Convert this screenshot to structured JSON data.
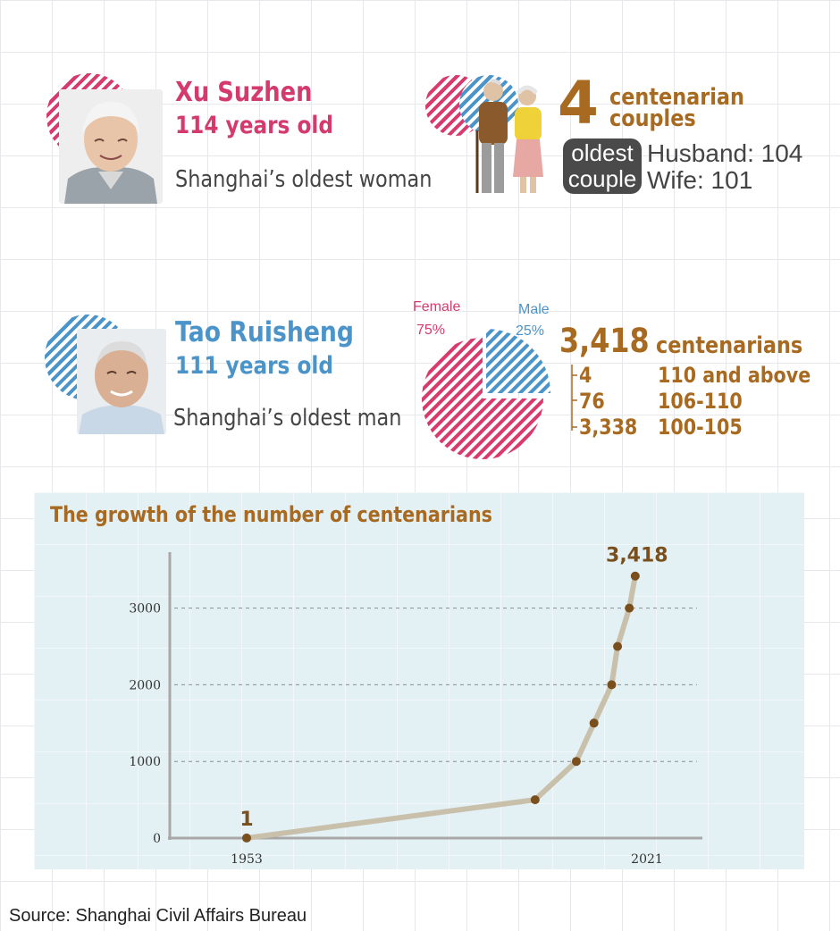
{
  "woman": {
    "name": "Xu Suzhen",
    "age": "114 years old",
    "caption": "Shanghai’s oldest woman"
  },
  "couples": {
    "count": "4",
    "label_line1": "centenarian",
    "label_line2": "couples",
    "badge_line1": "oldest",
    "badge_line2": "couple",
    "husband": "Husband: 104",
    "wife": "Wife: 101"
  },
  "man": {
    "name": "Tao Ruisheng",
    "age": "111 years old",
    "caption": "Shanghai’s oldest man"
  },
  "gender_pie": {
    "female_label": "Female",
    "female_pct": "75%",
    "male_label": "Male",
    "male_pct": "25%"
  },
  "totals": {
    "count": "3,418",
    "label": "centenarians",
    "rows": [
      {
        "count": "4",
        "range": "110 and above"
      },
      {
        "count": "76",
        "range": "106-110"
      },
      {
        "count": "3,338",
        "range": "100-105"
      }
    ]
  },
  "colors": {
    "female": "#d83a6e",
    "male": "#4b94c9",
    "accent": "#a86a20",
    "line": "#c8c0aa",
    "marker": "#7a4f1e"
  },
  "chart_data": [
    {
      "type": "pie",
      "series": [
        {
          "name": "Female",
          "value": 75
        },
        {
          "name": "Male",
          "value": 25
        }
      ]
    },
    {
      "type": "line",
      "title": "The growth of the number of centenarians",
      "xlabel": "",
      "ylabel": "",
      "x_ticks": [
        "1953",
        "2021"
      ],
      "y_ticks": [
        "0",
        "1000",
        "2000",
        "3000"
      ],
      "ylim": [
        0,
        3700
      ],
      "grid": "horizontal dashed",
      "annotations": [
        {
          "x": 1953,
          "text": "1"
        },
        {
          "x": 2021,
          "text": "3,418"
        }
      ],
      "series": [
        {
          "points": [
            {
              "x": 1953,
              "y": 1
            },
            {
              "x": 2002,
              "y": 500
            },
            {
              "x": 2009,
              "y": 1000
            },
            {
              "x": 2012,
              "y": 1500
            },
            {
              "x": 2015,
              "y": 2000
            },
            {
              "x": 2016,
              "y": 2500
            },
            {
              "x": 2018,
              "y": 3000
            },
            {
              "x": 2019,
              "y": 3418
            }
          ]
        }
      ]
    }
  ],
  "source": "Source: Shanghai Civil Affairs Bureau"
}
